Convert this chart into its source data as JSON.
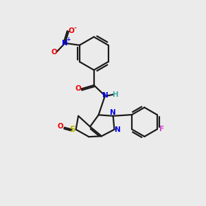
{
  "bg_color": "#ebebeb",
  "bond_color": "#1a1a1a",
  "bond_lw": 1.6,
  "fig_size": [
    3.0,
    3.0
  ],
  "dpi": 100,
  "atom_colors": {
    "N": "#0000ee",
    "O": "#ee0000",
    "S": "#bbbb00",
    "F": "#cc44cc",
    "H": "#44aaaa",
    "C": "#1a1a1a"
  },
  "font_size": 7.5
}
